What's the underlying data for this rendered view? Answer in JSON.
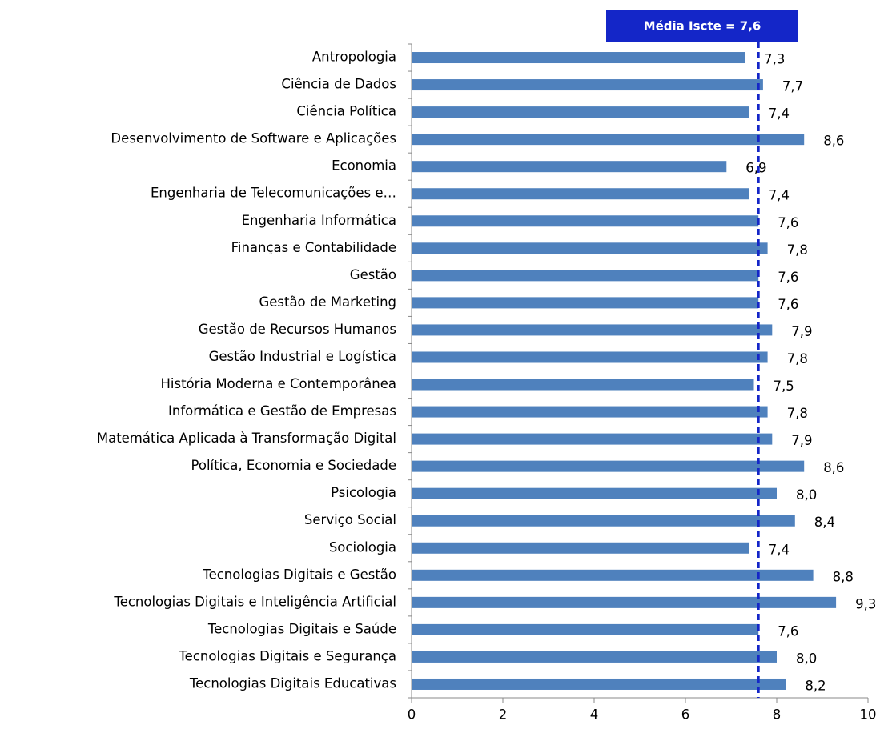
{
  "chart_data": {
    "type": "bar",
    "orientation": "horizontal",
    "categories": [
      "Antropologia",
      "Ciência de Dados",
      "Ciência Política",
      "Desenvolvimento de Software e Aplicações",
      "Economia",
      "Engenharia de Telecomunicações e…",
      "Engenharia Informática",
      "Finanças e Contabilidade",
      "Gestão",
      "Gestão de Marketing",
      "Gestão de Recursos Humanos",
      "Gestão Industrial e Logística",
      "História Moderna e Contemporânea",
      "Informática e Gestão de Empresas",
      "Matemática Aplicada à Transformação Digital",
      "Política, Economia e Sociedade",
      "Psicologia",
      "Serviço Social",
      "Sociologia",
      "Tecnologias Digitais e Gestão",
      "Tecnologias Digitais e Inteligência Artificial",
      "Tecnologias Digitais e Saúde",
      "Tecnologias Digitais e Segurança",
      "Tecnologias Digitais Educativas"
    ],
    "values": [
      7.3,
      7.7,
      7.4,
      8.6,
      6.9,
      7.4,
      7.6,
      7.8,
      7.6,
      7.6,
      7.9,
      7.8,
      7.5,
      7.8,
      7.9,
      8.6,
      8.0,
      8.4,
      7.4,
      8.8,
      9.3,
      7.6,
      8.0,
      8.2
    ],
    "value_labels": [
      "7,3",
      "7,7",
      "7,4",
      "8,6",
      "6,9",
      "7,4",
      "7,6",
      "7,8",
      "7,6",
      "7,6",
      "7,9",
      "7,8",
      "7,5",
      "7,8",
      "7,9",
      "8,6",
      "8,0",
      "8,4",
      "7,4",
      "8,8",
      "9,3",
      "7,6",
      "8,0",
      "8,2"
    ],
    "color": "#4f81bd",
    "xlim": [
      0,
      10
    ],
    "xticks": [
      0,
      2,
      4,
      6,
      8,
      10
    ],
    "reference_line": {
      "value": 7.6,
      "label": "Média Iscte = 7,6",
      "color": "#1426c8"
    }
  }
}
